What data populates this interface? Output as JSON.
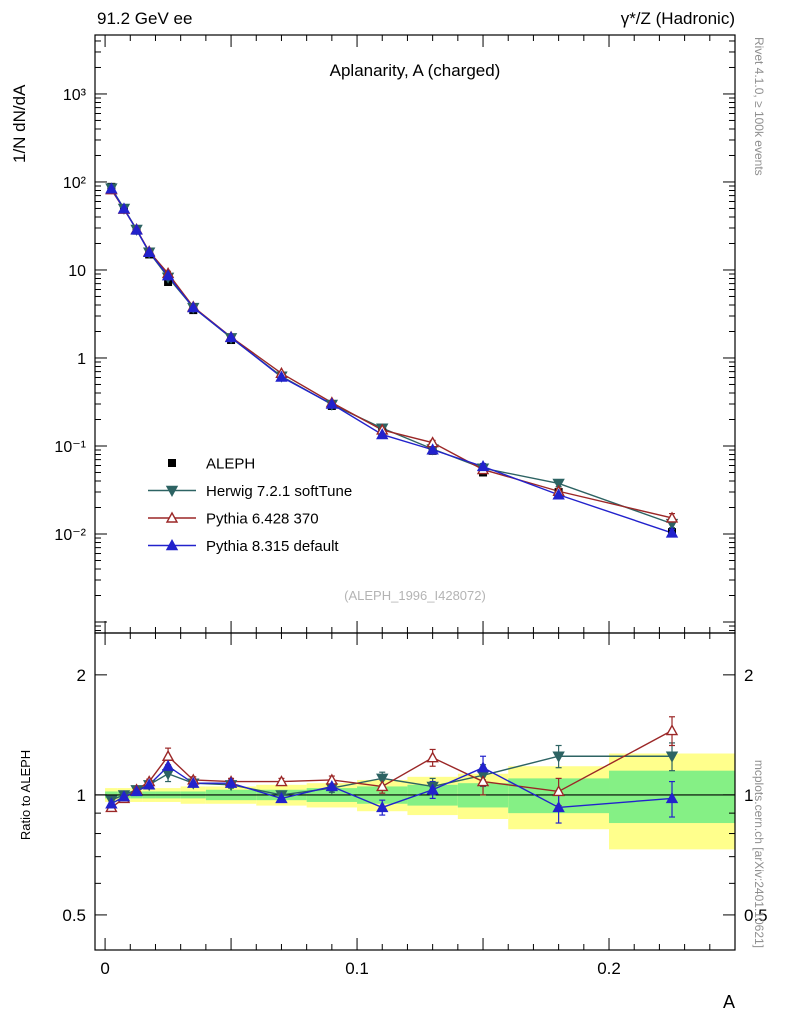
{
  "header": {
    "left": "91.2 GeV ee",
    "right": "γ*/Z (Hadronic)"
  },
  "title": "Aplanarity, A (charged)",
  "watermark": "(ALEPH_1996_I428072)",
  "side_notes": {
    "right_top": "Rivet 4.1.0, ≥ 100k events",
    "right_bottom": "mcplots.cern.ch [arXiv:2401.10621]"
  },
  "axes": {
    "y_label": "1/N  dN/dA",
    "ratio_label": "Ratio to ALEPH",
    "x_label": "A"
  },
  "chart_data": {
    "type": "line",
    "title": "Aplanarity, A (charged)",
    "xlabel": "A",
    "ylabel": "1/N  dN/dA",
    "ratio_ylabel": "Ratio to ALEPH",
    "x_range": [
      -0.004,
      0.25
    ],
    "y_scale": "log",
    "y_range_log": [
      -3.125,
      3.67
    ],
    "ratio_scale": "log",
    "ratio_range_log": [
      -0.389,
      0.406
    ],
    "x_edges": [
      0,
      0.005,
      0.01,
      0.015,
      0.02,
      0.03,
      0.04,
      0.06,
      0.08,
      0.1,
      0.12,
      0.14,
      0.16,
      0.2,
      0.25
    ],
    "x_centers": [
      0.0025,
      0.0075,
      0.0125,
      0.0175,
      0.025,
      0.035,
      0.05,
      0.07,
      0.09,
      0.11,
      0.13,
      0.15,
      0.18,
      0.225
    ],
    "x_ticks": [
      {
        "v": 0,
        "label": "0"
      },
      {
        "v": 0.1,
        "label": "0.1"
      },
      {
        "v": 0.2,
        "label": "0.2"
      }
    ],
    "x_tick_major_step": 0.05,
    "x_tick_minor_step": 0.01,
    "y_ticks": [
      {
        "v": 1000,
        "label": "10³"
      },
      {
        "v": 100,
        "label": "10²"
      },
      {
        "v": 10,
        "label": "10"
      },
      {
        "v": 1,
        "label": "1"
      },
      {
        "v": 0.1,
        "label": "10⁻¹"
      },
      {
        "v": 0.01,
        "label": "10⁻²"
      }
    ],
    "ratio_ticks": [
      {
        "v": 2,
        "label": "2"
      },
      {
        "v": 1,
        "label": "1"
      },
      {
        "v": 0.5,
        "label": "0.5"
      }
    ],
    "ratio_minor_ticks": [
      0.6,
      0.7,
      0.8,
      0.9
    ],
    "reference": {
      "name": "ALEPH",
      "color": "#000000",
      "marker": "square",
      "values": [
        88,
        50,
        28,
        15,
        7.3,
        3.5,
        1.6,
        0.62,
        0.285,
        0.145,
        0.088,
        0.05,
        0.03,
        0.0105
      ],
      "rel_err": [
        0.02,
        0.02,
        0.02,
        0.02,
        0.02,
        0.02,
        0.02,
        0.03,
        0.03,
        0.04,
        0.05,
        0.06,
        0.08,
        0.1
      ]
    },
    "series": [
      {
        "name": "Herwig 7.2.1 softTune",
        "color": "#2d6363",
        "marker": "triangle-down",
        "fill": "solid",
        "ratio": [
          0.97,
          1.0,
          1.03,
          1.06,
          1.13,
          1.07,
          1.06,
          1.0,
          1.04,
          1.1,
          1.05,
          1.12,
          1.25,
          1.25
        ],
        "ratio_err": [
          0.015,
          0.01,
          0.01,
          0.015,
          0.05,
          0.02,
          0.02,
          0.02,
          0.025,
          0.04,
          0.05,
          0.07,
          0.08,
          0.1
        ]
      },
      {
        "name": "Pythia 6.428 370",
        "color": "#9b2727",
        "marker": "triangle-up",
        "fill": "open",
        "ratio": [
          0.93,
          0.98,
          1.03,
          1.08,
          1.25,
          1.09,
          1.08,
          1.08,
          1.09,
          1.05,
          1.24,
          1.08,
          1.02,
          1.45
        ],
        "ratio_err": [
          0.015,
          0.01,
          0.01,
          0.015,
          0.06,
          0.02,
          0.02,
          0.02,
          0.025,
          0.04,
          0.06,
          0.08,
          0.08,
          0.12
        ]
      },
      {
        "name": "Pythia 8.315 default",
        "color": "#2222cc",
        "marker": "triangle-up",
        "fill": "solid",
        "ratio": [
          0.95,
          0.99,
          1.02,
          1.06,
          1.18,
          1.07,
          1.07,
          0.98,
          1.05,
          0.93,
          1.03,
          1.17,
          0.93,
          0.98
        ],
        "ratio_err": [
          0.015,
          0.01,
          0.01,
          0.015,
          0.05,
          0.02,
          0.02,
          0.02,
          0.025,
          0.04,
          0.05,
          0.08,
          0.08,
          0.1
        ]
      }
    ],
    "bands": {
      "yellow_color": "#ffff8c",
      "green_color": "#85f085",
      "yellow_half": [
        0.04,
        0.04,
        0.04,
        0.04,
        0.04,
        0.05,
        0.05,
        0.06,
        0.07,
        0.09,
        0.11,
        0.13,
        0.18,
        0.27
      ],
      "green_half": [
        0.02,
        0.02,
        0.02,
        0.02,
        0.02,
        0.02,
        0.03,
        0.03,
        0.04,
        0.05,
        0.06,
        0.07,
        0.1,
        0.15
      ]
    }
  }
}
